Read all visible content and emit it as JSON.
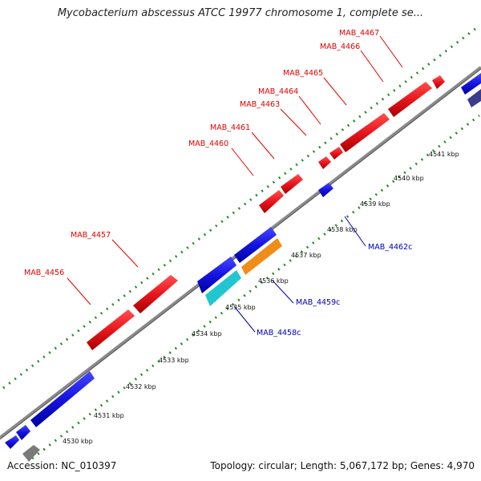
{
  "title": "Mycobacterium abscessus ATCC 19977 chromosome 1, complete se...",
  "footer": {
    "accession": "Accession: NC_010397",
    "topology": "Topology: circular; Length: 5,067,172 bp; Genes: 4,970"
  },
  "ticks": [
    {
      "label": "4530 kbp",
      "side": "minus"
    },
    {
      "label": "4531 kbp",
      "side": "minus"
    },
    {
      "label": "4532 kbp",
      "side": "minus"
    },
    {
      "label": "4533 kbp",
      "side": "minus"
    },
    {
      "label": "4534 kbp",
      "side": "minus"
    },
    {
      "label": "4535 kbp",
      "side": "minus"
    },
    {
      "label": "4536 kbp",
      "side": "minus"
    },
    {
      "label": "4537 kbp",
      "side": "minus"
    },
    {
      "label": "4538 kbp",
      "side": "minus"
    },
    {
      "label": "4539 kbp",
      "side": "minus"
    },
    {
      "label": "4540 kbp",
      "side": "minus"
    },
    {
      "label": "4541 kbp",
      "side": "minus"
    }
  ],
  "plus_labels": [
    {
      "name": "MAB_4456",
      "color": "#e00000"
    },
    {
      "name": "MAB_4457",
      "color": "#e00000"
    },
    {
      "name": "MAB_4460",
      "color": "#e00000"
    },
    {
      "name": "MAB_4461",
      "color": "#e00000"
    },
    {
      "name": "MAB_4463",
      "color": "#e00000"
    },
    {
      "name": "MAB_4464",
      "color": "#e00000"
    },
    {
      "name": "MAB_4465",
      "color": "#e00000"
    },
    {
      "name": "MAB_4466",
      "color": "#e00000"
    },
    {
      "name": "MAB_4467",
      "color": "#e00000"
    }
  ],
  "minus_labels": [
    {
      "name": "MAB_4458c",
      "color": "#0000b0"
    },
    {
      "name": "MAB_4459c",
      "color": "#0000b0"
    },
    {
      "name": "MAB_4462c",
      "color": "#0000b0"
    }
  ],
  "colors": {
    "plus_gene": "#e8161d",
    "minus_gene": "#1414e0",
    "cyan_gene": "#22c6d0",
    "orange_gene": "#f08c18",
    "gray_gene": "#7a7a7a",
    "slate_gene": "#3c3c8c",
    "backbone": "#8a8a8a",
    "scale_dots": "#2a8a2a"
  }
}
